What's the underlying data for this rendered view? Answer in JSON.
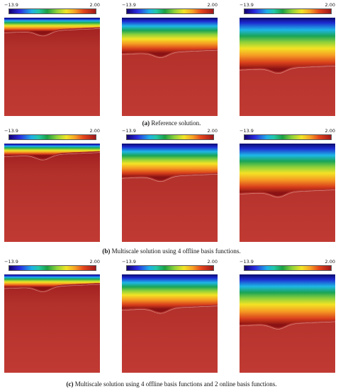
{
  "colorbar": {
    "min_label": "−13.9",
    "max_label": "2.00"
  },
  "rows": [
    {
      "caption_tag": "(a)",
      "caption_text": " Reference solution.",
      "panels": [
        {
          "depth": 0.14
        },
        {
          "depth": 0.36
        },
        {
          "depth": 0.52
        }
      ]
    },
    {
      "caption_tag": "(b)",
      "caption_text": " Multiscale solution using 4 offline basis functions.",
      "panels": [
        {
          "depth": 0.12
        },
        {
          "depth": 0.34
        },
        {
          "depth": 0.5
        }
      ]
    },
    {
      "caption_tag": "(c)",
      "caption_text": " Multiscale solution using 4 offline basis functions and 2 online basis functions.",
      "panels": [
        {
          "depth": 0.13
        },
        {
          "depth": 0.35
        },
        {
          "depth": 0.51
        }
      ]
    }
  ]
}
